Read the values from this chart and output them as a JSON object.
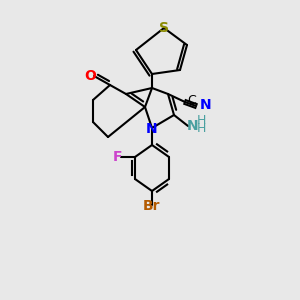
{
  "background_color": "#e8e8e8",
  "bond_color": "#000000",
  "bond_width": 1.5,
  "atom_colors": {
    "C": "#000000",
    "N": "#0000ff",
    "O": "#ff0000",
    "S": "#8b8b00",
    "Br": "#b35a00",
    "F": "#cc44cc",
    "CN_group": "#000000",
    "NH2_color": "#4aa0a0"
  },
  "font_size": 9,
  "label_font_size": 9
}
